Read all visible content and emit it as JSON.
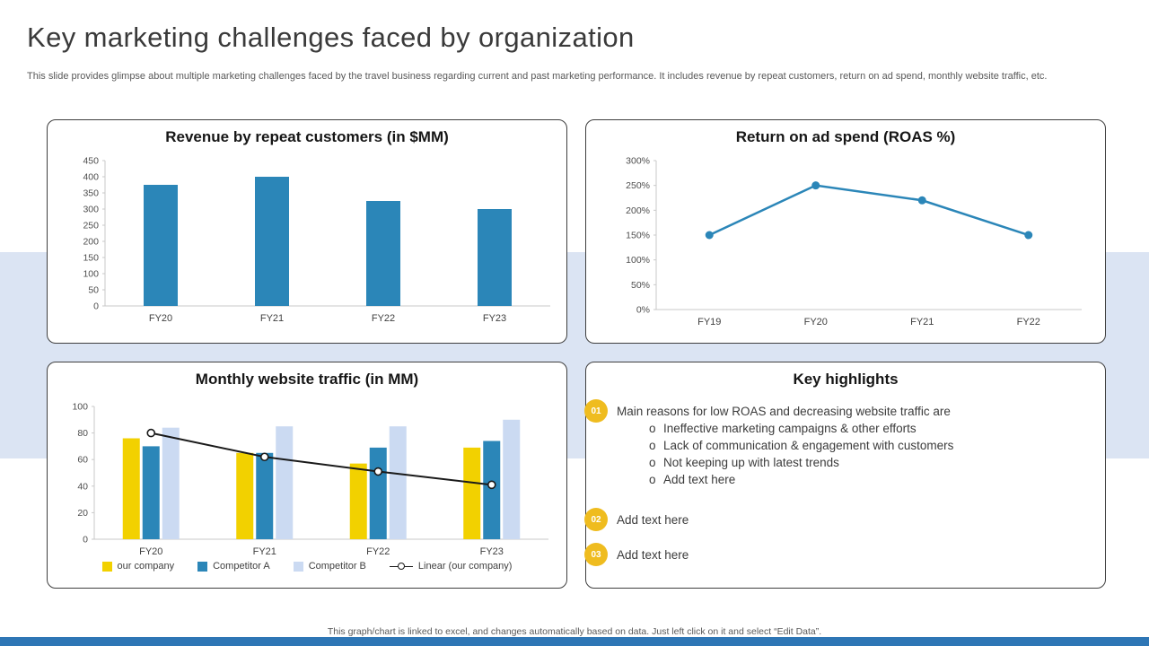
{
  "header": {
    "title": "Key marketing challenges faced by organization",
    "subtitle": "This slide provides glimpse about multiple marketing challenges faced by the travel business regarding current and past marketing performance. It includes revenue by repeat customers, return on ad spend, monthly website traffic, etc."
  },
  "colors": {
    "accent_blue": "#2b86b8",
    "company_yellow": "#f2d100",
    "competitor_b_blue": "#cbdaf2",
    "light_band": "#dbe4f3",
    "bottom_strip": "#2e76b5",
    "badge_yellow": "#efbc1f",
    "trend_black": "#1a1a1a"
  },
  "chart_data": [
    {
      "id": "revenue",
      "type": "bar",
      "title": "Revenue by repeat customers (in $MM)",
      "categories": [
        "FY20",
        "FY21",
        "FY22",
        "FY23"
      ],
      "values": [
        375,
        400,
        325,
        300
      ],
      "ylim": [
        0,
        450
      ],
      "ytick_step": 50,
      "grid": false,
      "bar_color": "#2b86b8"
    },
    {
      "id": "roas",
      "type": "line",
      "title": "Return on ad spend (ROAS %)",
      "categories": [
        "FY19",
        "FY20",
        "FY21",
        "FY22"
      ],
      "values": [
        150,
        250,
        220,
        150
      ],
      "ylim": [
        0,
        300
      ],
      "ytick_step": 50,
      "ytick_suffix": "%",
      "grid": false,
      "line_color": "#2b86b8"
    },
    {
      "id": "traffic",
      "type": "bar",
      "title": "Monthly website traffic (in MM)",
      "categories": [
        "FY20",
        "FY21",
        "FY22",
        "FY23"
      ],
      "series": [
        {
          "name": "our company",
          "values": [
            76,
            65,
            57,
            69
          ],
          "color": "#f2d100"
        },
        {
          "name": "Competitor A",
          "values": [
            70,
            65,
            69,
            74
          ],
          "color": "#2b86b8"
        },
        {
          "name": "Competitor B",
          "values": [
            84,
            85,
            85,
            90
          ],
          "color": "#cbdaf2"
        }
      ],
      "trend": {
        "name": "Linear (our company)",
        "values": [
          80,
          62,
          51,
          41
        ],
        "color": "#1a1a1a"
      },
      "ylim": [
        0,
        100
      ],
      "ytick_step": 20,
      "grid": false,
      "legend_position": "bottom"
    }
  ],
  "key_highlights": {
    "title": "Key highlights",
    "bullet_marker": "o",
    "items": [
      {
        "number": "01",
        "text": "Main reasons for low ROAS and decreasing website traffic are",
        "bullets": [
          "Ineffective marketing campaigns & other efforts",
          "Lack of communication & engagement with customers",
          "Not keeping up with latest trends",
          "Add text here"
        ]
      },
      {
        "number": "02",
        "text": "Add text here",
        "bullets": []
      },
      {
        "number": "03",
        "text": "Add text here",
        "bullets": []
      }
    ]
  },
  "footer": {
    "note": "This graph/chart is linked to excel, and changes automatically based on data. Just left click on it and select “Edit Data”."
  }
}
